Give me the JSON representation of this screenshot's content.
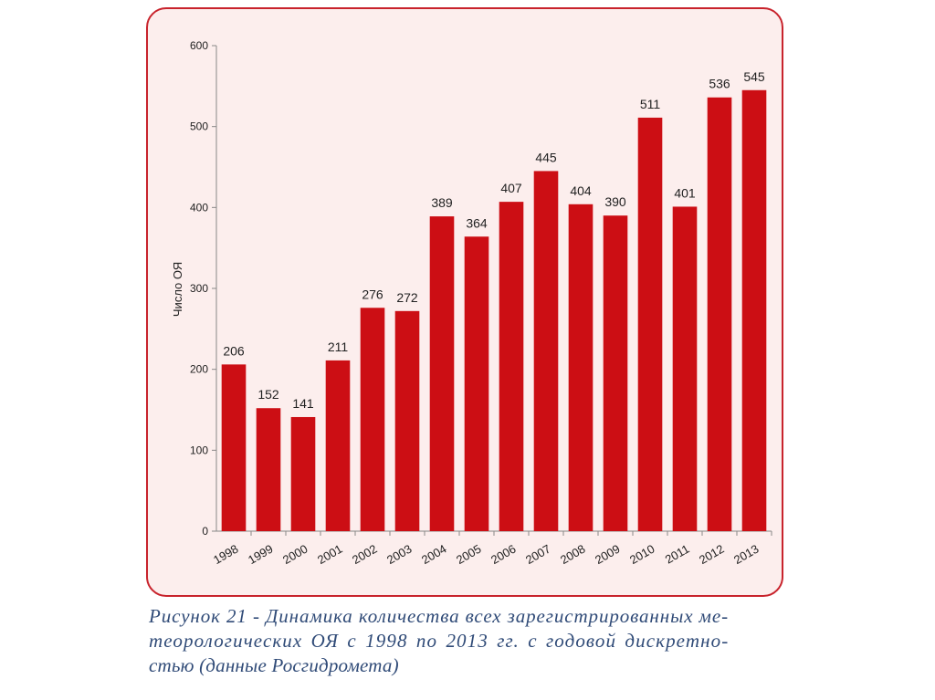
{
  "chart_data": {
    "type": "bar",
    "title": "",
    "xlabel": "",
    "ylabel": "Число ОЯ",
    "categories": [
      "1998",
      "1999",
      "2000",
      "2001",
      "2002",
      "2003",
      "2004",
      "2005",
      "2006",
      "2007",
      "2008",
      "2009",
      "2010",
      "2011",
      "2012",
      "2013"
    ],
    "values": [
      206,
      152,
      141,
      211,
      276,
      272,
      389,
      364,
      407,
      445,
      404,
      390,
      511,
      401,
      536,
      545
    ],
    "ylim": [
      0,
      600
    ],
    "yticks": [
      0,
      100,
      200,
      300,
      400,
      500,
      600
    ],
    "grid": false,
    "legend": "none",
    "bar_color": "#cc0e14"
  },
  "caption": {
    "lines": [
      "Рисунок 21 - Динамика количества всех зарегистрированных ме-",
      "теорологических ОЯ с 1998 по 2013 гг. с годовой дискретно-",
      "стью (данные Росгидромета)"
    ]
  }
}
